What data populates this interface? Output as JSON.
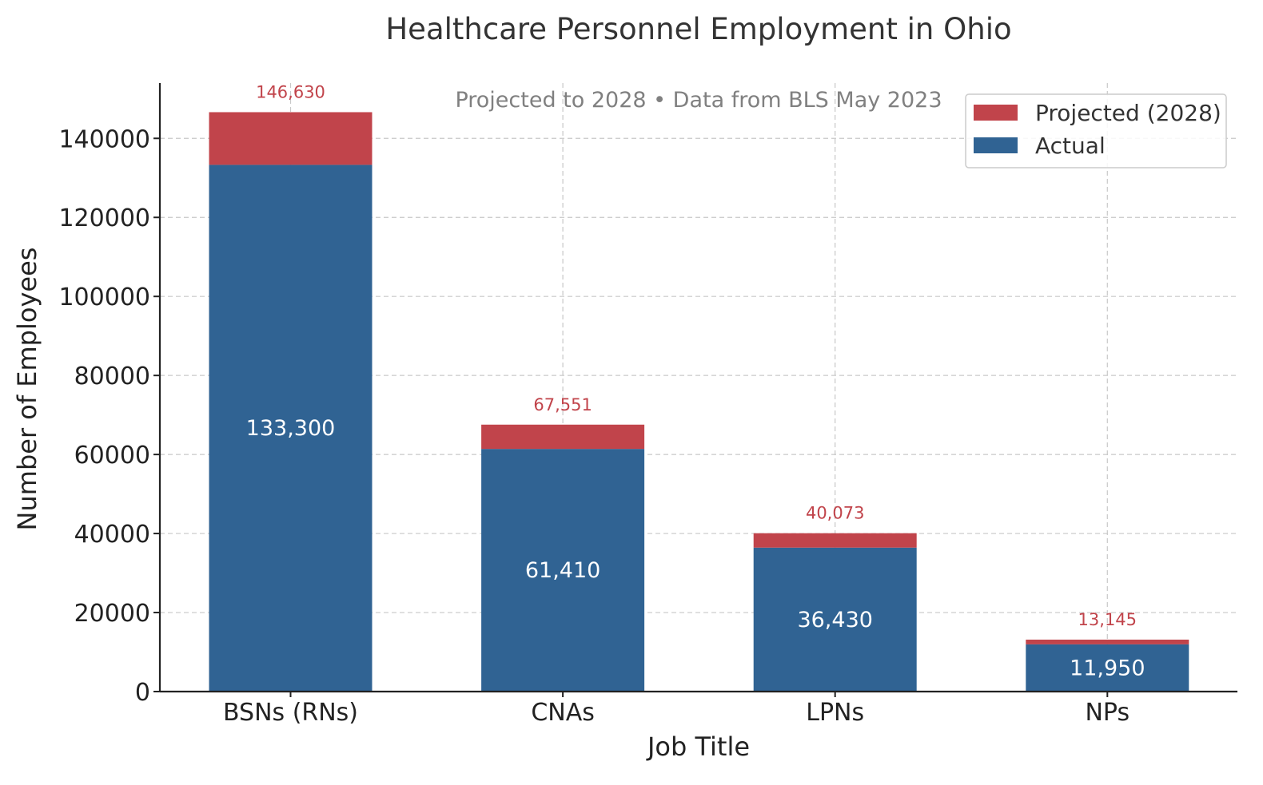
{
  "chart_data": {
    "type": "bar",
    "stacked": true,
    "title": "Healthcare Personnel Employment in Ohio",
    "subtitle": "Projected to 2028 • Data from BLS May 2023",
    "xlabel": "Job Title",
    "ylabel": "Number of Employees",
    "categories": [
      "BSNs (RNs)",
      "CNAs",
      "LPNs",
      "NPs"
    ],
    "series": [
      {
        "name": "Actual",
        "color": "#306393",
        "values": [
          133300,
          61410,
          36430,
          11950
        ],
        "labels": [
          "133,300",
          "61,410",
          "36,430",
          "11,950"
        ]
      },
      {
        "name": "Projected (2028)",
        "color": "#c1444b",
        "totals": [
          146630,
          67551,
          40073,
          13145
        ],
        "labels": [
          "146,630",
          "67,551",
          "40,073",
          "13,145"
        ]
      }
    ],
    "ylim": [
      0,
      154000
    ],
    "yticks": [
      0,
      20000,
      40000,
      60000,
      80000,
      100000,
      120000,
      140000
    ],
    "grid": true,
    "legend_position": "top-right",
    "legend_order": [
      "Projected (2028)",
      "Actual"
    ]
  }
}
